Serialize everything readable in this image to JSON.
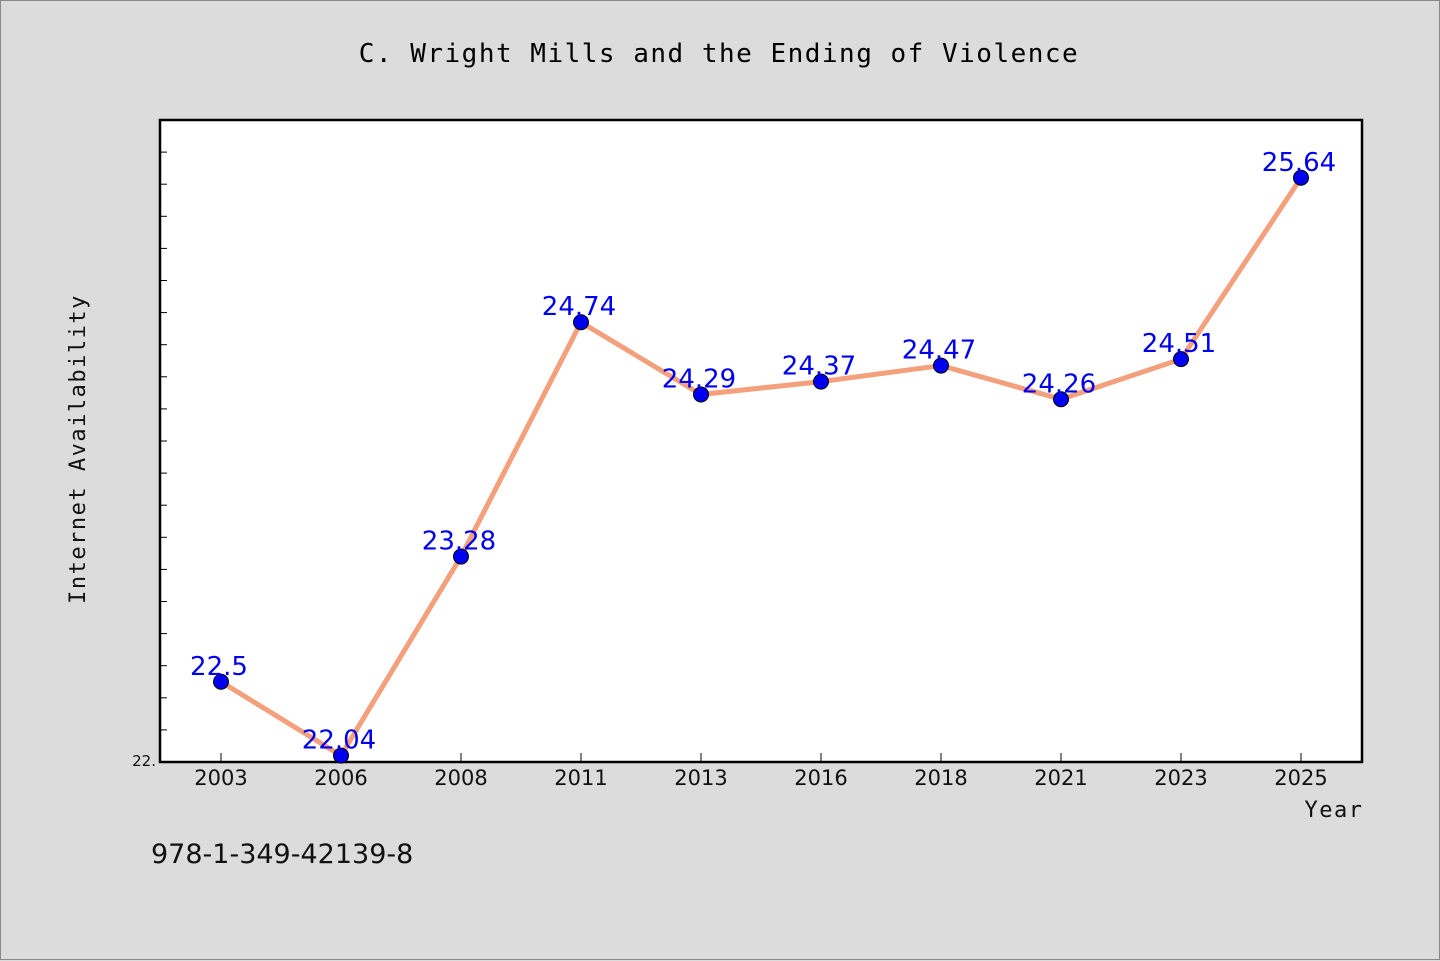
{
  "chart_data": {
    "type": "line",
    "title": "C. Wright Mills and the Ending of Violence",
    "xlabel": "Year",
    "ylabel": "Internet Availability",
    "categories": [
      "2003",
      "2006",
      "2008",
      "2011",
      "2013",
      "2016",
      "2018",
      "2021",
      "2023",
      "2025"
    ],
    "series": [
      {
        "values": [
          22.5,
          22.04,
          23.28,
          24.74,
          24.29,
          24.37,
          24.47,
          24.26,
          24.51,
          25.64
        ]
      }
    ],
    "data_labels": [
      "22.5",
      "22.04",
      "23.28",
      "24.74",
      "24.29",
      "24.37",
      "24.47",
      "24.26",
      "24.51",
      "25.64"
    ],
    "ylim": [
      22.0,
      26.0
    ],
    "ytick_labels": [
      "22."
    ],
    "line_color": "#f4a07c",
    "marker_color": "#0000ee",
    "grid": false
  },
  "footer_text": "978-1-349-42139-8"
}
